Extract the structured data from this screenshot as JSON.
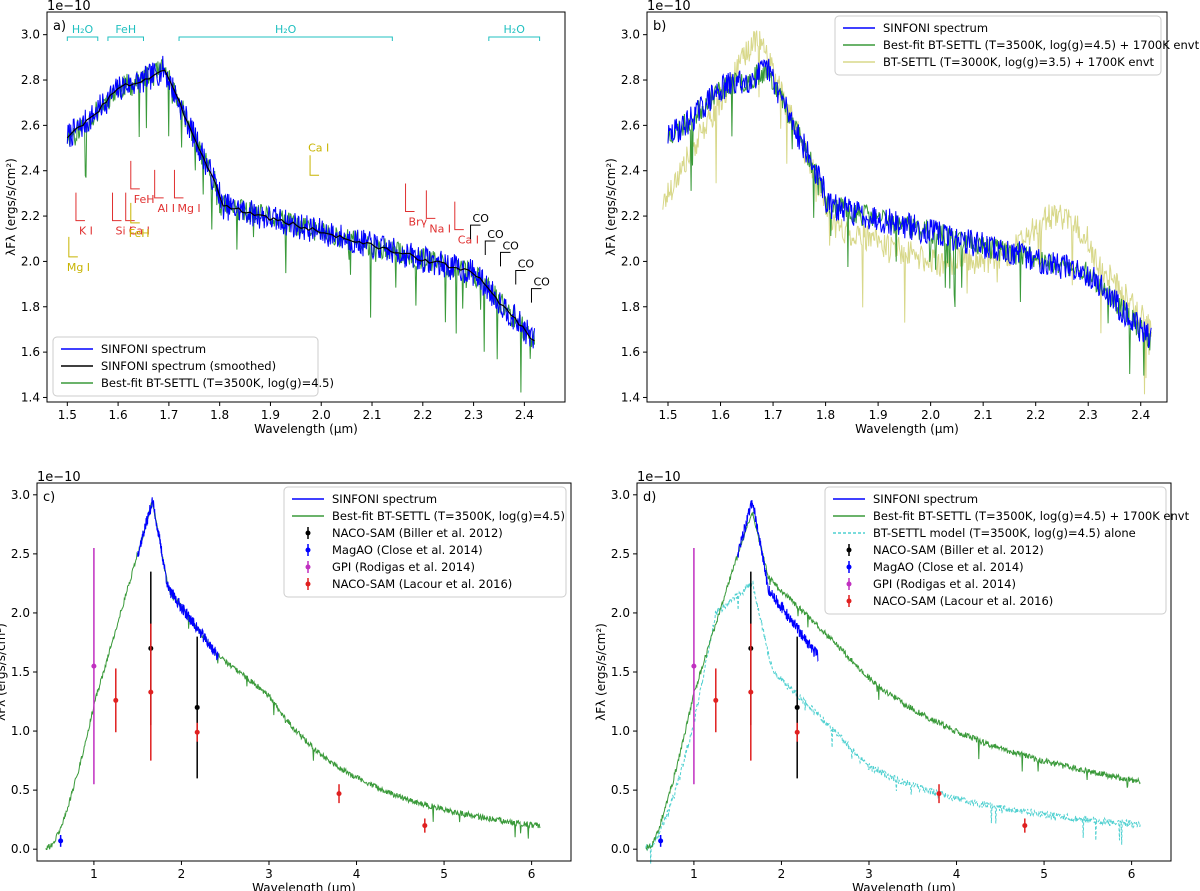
{
  "figure": {
    "exponent": "1e−10",
    "xlabel_prefix": "Wavelength (",
    "xlabel_unit": "μm",
    "xlabel_suffix": ")"
  },
  "colors": {
    "sinfoni": "#0000ff",
    "smoothed": "#000000",
    "btsettl": "#3a9a3a",
    "btsettl_alt": "#d8d88a",
    "model_alone": "#4fd0d0",
    "molecule": "#20c0c0",
    "atom_red": "#e03030",
    "atom_yellow": "#c8b400",
    "naco_biller": "#000000",
    "magao": "#0000ff",
    "gpi": "#c030c0",
    "naco_lacour": "#e02020"
  },
  "chart_data": [
    {
      "panel": "a)",
      "type": "line",
      "xlim": [
        1.46,
        2.48
      ],
      "ylim": [
        1.38,
        3.1
      ],
      "xticks": [
        "1.5",
        "1.6",
        "1.7",
        "1.8",
        "1.9",
        "2.0",
        "2.1",
        "2.2",
        "2.3",
        "2.4"
      ],
      "yticks": [
        "1.4",
        "1.6",
        "1.8",
        "2.0",
        "2.2",
        "2.4",
        "2.6",
        "2.8",
        "3.0"
      ],
      "ylabel": "λFλ (ergs/s/cm²)",
      "legend": [
        "SINFONI spectrum",
        "SINFONI spectrum (smoothed)",
        "Best-fit BT-SETTL (T=3500K, log(g)=4.5)"
      ],
      "bands": [
        {
          "label": "H₂O",
          "x": [
            1.5,
            1.56
          ]
        },
        {
          "label": "FeH",
          "x": [
            1.58,
            1.65
          ]
        },
        {
          "label": "H₂O",
          "x": [
            1.72,
            2.14
          ]
        },
        {
          "label": "H₂O",
          "x": [
            2.33,
            2.43
          ]
        }
      ],
      "red_lines": [
        {
          "label": "K I",
          "x": 1.517,
          "y": 2.18
        },
        {
          "label": "Si I",
          "x": 1.589,
          "y": 2.18
        },
        {
          "label": "Ca I",
          "x": 1.615,
          "y": 2.18
        },
        {
          "label": "FeH",
          "x": 1.625,
          "y": 2.32
        },
        {
          "label": "Al I",
          "x": 1.672,
          "y": 2.28
        },
        {
          "label": "Mg I",
          "x": 1.711,
          "y": 2.28
        },
        {
          "label": "Brγ",
          "x": 2.166,
          "y": 2.22
        },
        {
          "label": "Na I",
          "x": 2.207,
          "y": 2.19
        },
        {
          "label": "Ca I",
          "x": 2.263,
          "y": 2.14
        }
      ],
      "yellow_lines": [
        {
          "label": "Mg I",
          "x": 1.503,
          "y": 2.02
        },
        {
          "label": "FeH",
          "x": 1.625,
          "y": 2.17
        },
        {
          "label": "Ca I",
          "x": 1.978,
          "y": 2.38
        }
      ],
      "co_heads": [
        {
          "label": "CO",
          "x": 2.294,
          "y": 2.16
        },
        {
          "label": "CO",
          "x": 2.323,
          "y": 2.09
        },
        {
          "label": "CO",
          "x": 2.353,
          "y": 2.04
        },
        {
          "label": "CO",
          "x": 2.383,
          "y": 1.96
        },
        {
          "label": "CO",
          "x": 2.414,
          "y": 1.88
        }
      ]
    },
    {
      "panel": "b)",
      "type": "line",
      "xlim": [
        1.46,
        2.45
      ],
      "ylim": [
        1.38,
        3.1
      ],
      "xticks": [
        "1.5",
        "1.6",
        "1.7",
        "1.8",
        "1.9",
        "2.0",
        "2.1",
        "2.2",
        "2.3",
        "2.4"
      ],
      "yticks": [
        "1.4",
        "1.6",
        "1.8",
        "2.0",
        "2.2",
        "2.4",
        "2.6",
        "2.8",
        "3.0"
      ],
      "ylabel": "λFλ (ergs/s/cm²)",
      "legend": [
        "SINFONI spectrum",
        "Best-fit BT-SETTL (T=3500K, log(g)=4.5) + 1700K envt",
        "BT-SETTL (T=3000K, log(g)=3.5) + 1700K envt"
      ]
    },
    {
      "panel": "c)",
      "type": "line",
      "xlim": [
        0.35,
        6.45
      ],
      "ylim": [
        -0.1,
        3.1
      ],
      "xticks": [
        "1",
        "2",
        "3",
        "4",
        "5",
        "6"
      ],
      "yticks": [
        "0.0",
        "0.5",
        "1.0",
        "1.5",
        "2.0",
        "2.5",
        "3.0"
      ],
      "ylabel": "λFλ (ergs/s/cm²)",
      "legend": [
        "SINFONI spectrum",
        "Best-fit BT-SETTL (T=3500K, log(g)=4.5)",
        "NACO-SAM (Biller et al. 2012)",
        "MagAO (Close et al. 2014)",
        "GPI (Rodigas et al. 2014)",
        "NACO-SAM (Lacour et al. 2016)"
      ],
      "photometry": [
        {
          "set": "NACO-SAM (Biller et al. 2012)",
          "x": [
            1.65,
            2.18
          ],
          "y": [
            1.7,
            1.2
          ],
          "err": [
            0.65,
            0.6
          ]
        },
        {
          "set": "MagAO (Close et al. 2014)",
          "x": [
            0.62
          ],
          "y": [
            0.07
          ],
          "err": [
            0.05
          ]
        },
        {
          "set": "GPI (Rodigas et al. 2014)",
          "x": [
            1.0
          ],
          "y": [
            1.55
          ],
          "err": [
            1.0
          ]
        },
        {
          "set": "NACO-SAM (Lacour et al. 2016)",
          "x": [
            1.25,
            1.65,
            2.18,
            3.8,
            4.78
          ],
          "y": [
            1.26,
            1.33,
            0.99,
            0.47,
            0.2
          ],
          "err": [
            0.27,
            0.58,
            0.08,
            0.08,
            0.06
          ]
        }
      ]
    },
    {
      "panel": "d)",
      "type": "line",
      "xlim": [
        0.35,
        6.45
      ],
      "ylim": [
        -0.1,
        3.1
      ],
      "xticks": [
        "1",
        "2",
        "3",
        "4",
        "5",
        "6"
      ],
      "yticks": [
        "0.0",
        "0.5",
        "1.0",
        "1.5",
        "2.0",
        "2.5",
        "3.0"
      ],
      "ylabel": "λFλ (ergs/s/cm²)",
      "legend": [
        "SINFONI spectrum",
        "Best-fit BT-SETTL (T=3500K, log(g)=4.5) + 1700K envt",
        "BT-SETTL model (T=3500K, log(g)=4.5) alone",
        "NACO-SAM (Biller et al. 2012)",
        "MagAO (Close et al. 2014)",
        "GPI (Rodigas et al. 2014)",
        "NACO-SAM (Lacour et al. 2016)"
      ],
      "photometry": [
        {
          "set": "NACO-SAM (Biller et al. 2012)",
          "x": [
            1.65,
            2.18
          ],
          "y": [
            1.7,
            1.2
          ],
          "err": [
            0.65,
            0.6
          ]
        },
        {
          "set": "MagAO (Close et al. 2014)",
          "x": [
            0.62
          ],
          "y": [
            0.07
          ],
          "err": [
            0.05
          ]
        },
        {
          "set": "GPI (Rodigas et al. 2014)",
          "x": [
            1.0
          ],
          "y": [
            1.55
          ],
          "err": [
            1.0
          ]
        },
        {
          "set": "NACO-SAM (Lacour et al. 2016)",
          "x": [
            1.25,
            1.65,
            2.18,
            3.8,
            4.78
          ],
          "y": [
            1.26,
            1.33,
            0.99,
            0.47,
            0.2
          ],
          "err": [
            0.27,
            0.58,
            0.08,
            0.08,
            0.06
          ]
        }
      ]
    }
  ]
}
